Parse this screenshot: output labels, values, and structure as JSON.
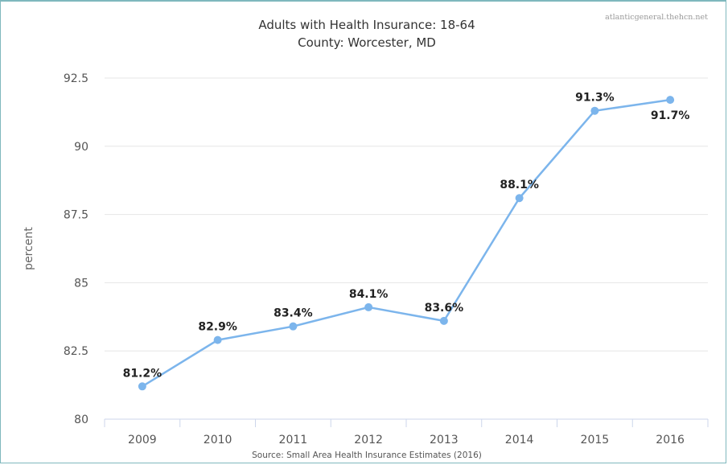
{
  "credit": "atlanticgeneral.thehcn.net",
  "source": "Source: Small Area Health Insurance Estimates (2016)",
  "colors": {
    "series": "#7cb5ec",
    "frame": "#7fb8bd"
  },
  "chart_data": {
    "type": "line",
    "title": "Adults with Health Insurance: 18-64",
    "subtitle": "County: Worcester, MD",
    "xlabel": "",
    "ylabel": "percent",
    "categories": [
      "2009",
      "2010",
      "2011",
      "2012",
      "2013",
      "2014",
      "2015",
      "2016"
    ],
    "yticks": [
      "80",
      "82.5",
      "85",
      "87.5",
      "90",
      "92.5"
    ],
    "ylim": [
      80,
      92.5
    ],
    "grid": true,
    "legend": "none",
    "series": [
      {
        "values": [
          81.2,
          82.9,
          83.4,
          84.1,
          83.6,
          88.1,
          91.3,
          91.7
        ],
        "labels": [
          "81.2%",
          "82.9%",
          "83.4%",
          "84.1%",
          "83.6%",
          "88.1%",
          "91.3%",
          "91.7%"
        ]
      }
    ]
  }
}
